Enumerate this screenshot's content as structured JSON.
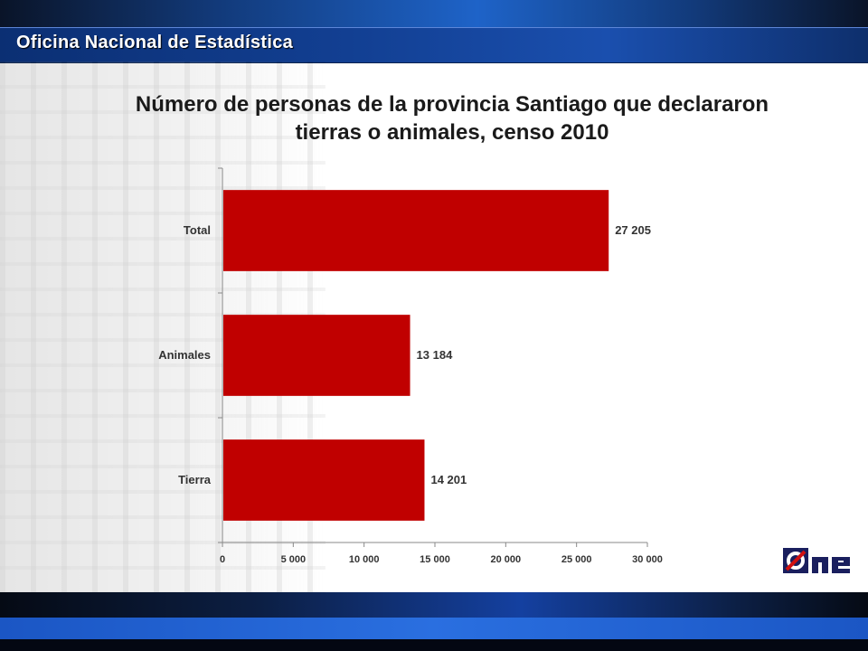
{
  "header": {
    "title": "Oficina Nacional de Estadística"
  },
  "chart_data": {
    "type": "bar",
    "orientation": "horizontal",
    "title": "Número de personas de la provincia Santiago que declararon  tierras o animales, censo 2010",
    "categories": [
      "Total",
      "Animales",
      "Tierra"
    ],
    "values": [
      27205,
      13184,
      14201
    ],
    "value_labels": [
      "27 205",
      "13 184",
      "14 201"
    ],
    "xlim": [
      0,
      30000
    ],
    "x_ticks": [
      0,
      5000,
      10000,
      15000,
      20000,
      25000,
      30000
    ],
    "x_tick_labels": [
      "0",
      "5 000",
      "10 000",
      "15 000",
      "20 000",
      "25 000",
      "30 000"
    ],
    "bar_color": "#c00000",
    "grid": false,
    "legend": "none"
  },
  "logo": {
    "text": "one",
    "colors": {
      "red": "#d01010",
      "navy": "#1a1f5e"
    }
  }
}
